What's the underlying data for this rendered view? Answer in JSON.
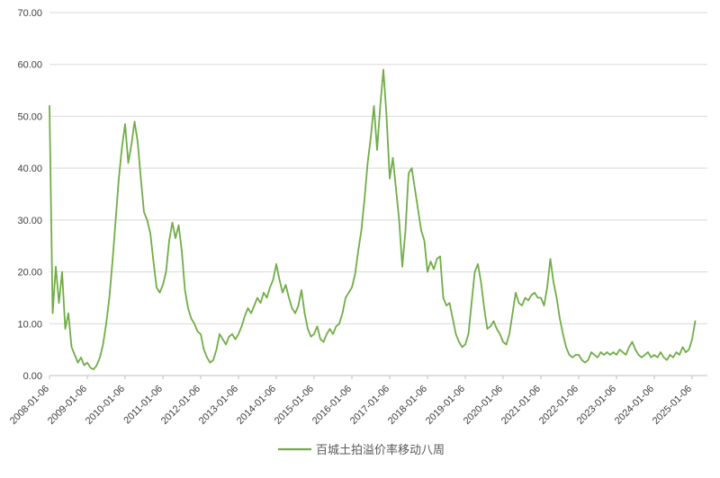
{
  "chart_data": {
    "type": "line",
    "title": "",
    "xlabel": "",
    "ylabel": "",
    "ylim": [
      0,
      70
    ],
    "grid": "horizontal",
    "legend_position": "bottom",
    "y_ticks": [
      0,
      10,
      20,
      30,
      40,
      50,
      60,
      70
    ],
    "y_tick_labels": [
      "0.00",
      "10.00",
      "20.00",
      "30.00",
      "40.00",
      "50.00",
      "60.00",
      "70.00"
    ],
    "x_tick_labels": [
      "2008-01-06",
      "2009-01-06",
      "2010-01-06",
      "2011-01-06",
      "2012-01-06",
      "2013-01-06",
      "2014-01-06",
      "2015-01-06",
      "2016-01-06",
      "2017-01-06",
      "2018-01-06",
      "2019-01-06",
      "2020-01-06",
      "2021-01-06",
      "2022-01-06",
      "2023-01-06",
      "2024-01-06",
      "2025-01-06"
    ],
    "x_start_month": "2008-01",
    "x_resolution": "monthly",
    "series": [
      {
        "name": "百城土拍溢价率移动八周",
        "color": "#70AD47",
        "values": [
          52,
          12,
          21,
          14,
          20,
          9,
          12,
          5.5,
          4,
          2.5,
          3.5,
          2,
          2.5,
          1.5,
          1.2,
          2,
          3.5,
          6,
          10,
          15,
          22,
          30,
          38,
          44,
          48.5,
          41,
          44.5,
          49,
          45,
          38,
          31.5,
          30,
          27.5,
          22,
          17,
          16,
          17.5,
          20,
          26,
          29.5,
          26.5,
          29,
          24,
          16.5,
          13,
          11,
          10,
          8.5,
          8,
          5,
          3.5,
          2.5,
          3,
          5,
          8,
          7,
          6,
          7.5,
          8,
          7,
          8,
          9.5,
          11.5,
          13,
          12,
          13.5,
          15,
          14,
          16,
          15,
          17,
          18.5,
          21.5,
          18.5,
          16,
          17.5,
          15,
          13,
          12,
          13.5,
          16.5,
          12,
          9,
          7.5,
          8,
          9.5,
          7,
          6.5,
          8,
          9,
          8,
          9.5,
          10,
          12,
          15,
          16,
          17,
          19.5,
          24,
          28,
          34,
          41,
          46,
          52,
          43.5,
          52,
          59,
          50,
          38,
          42,
          36,
          30,
          21,
          28,
          39,
          40,
          36,
          32,
          28,
          26,
          20,
          22,
          20.5,
          22.5,
          23,
          15,
          13.5,
          14,
          11,
          8,
          6.5,
          5.5,
          6,
          8,
          14,
          20,
          21.5,
          18,
          13,
          9,
          9.5,
          10.5,
          9,
          8,
          6.5,
          6,
          8,
          12,
          16,
          14,
          13.5,
          15,
          14.5,
          15.5,
          16,
          15,
          15,
          13.5,
          17,
          22.5,
          18,
          15,
          11,
          8,
          5.5,
          4,
          3.5,
          4,
          4,
          3,
          2.5,
          3,
          4.5,
          4,
          3.5,
          4.5,
          4,
          4.5,
          4,
          4.5,
          4,
          5,
          4.5,
          4,
          5.5,
          6.5,
          5,
          4,
          3.5,
          4,
          4.5,
          3.5,
          4,
          3.5,
          4.5,
          3.5,
          3,
          4,
          3.5,
          4.5,
          4,
          5.5,
          4.5,
          5,
          7,
          10.5
        ]
      }
    ]
  },
  "colors": {
    "background": "#FFFFFF",
    "grid": "#D9D9D9",
    "axis": "#BFBFBF",
    "tick_text": "#404040",
    "legend_text": "#595959"
  }
}
